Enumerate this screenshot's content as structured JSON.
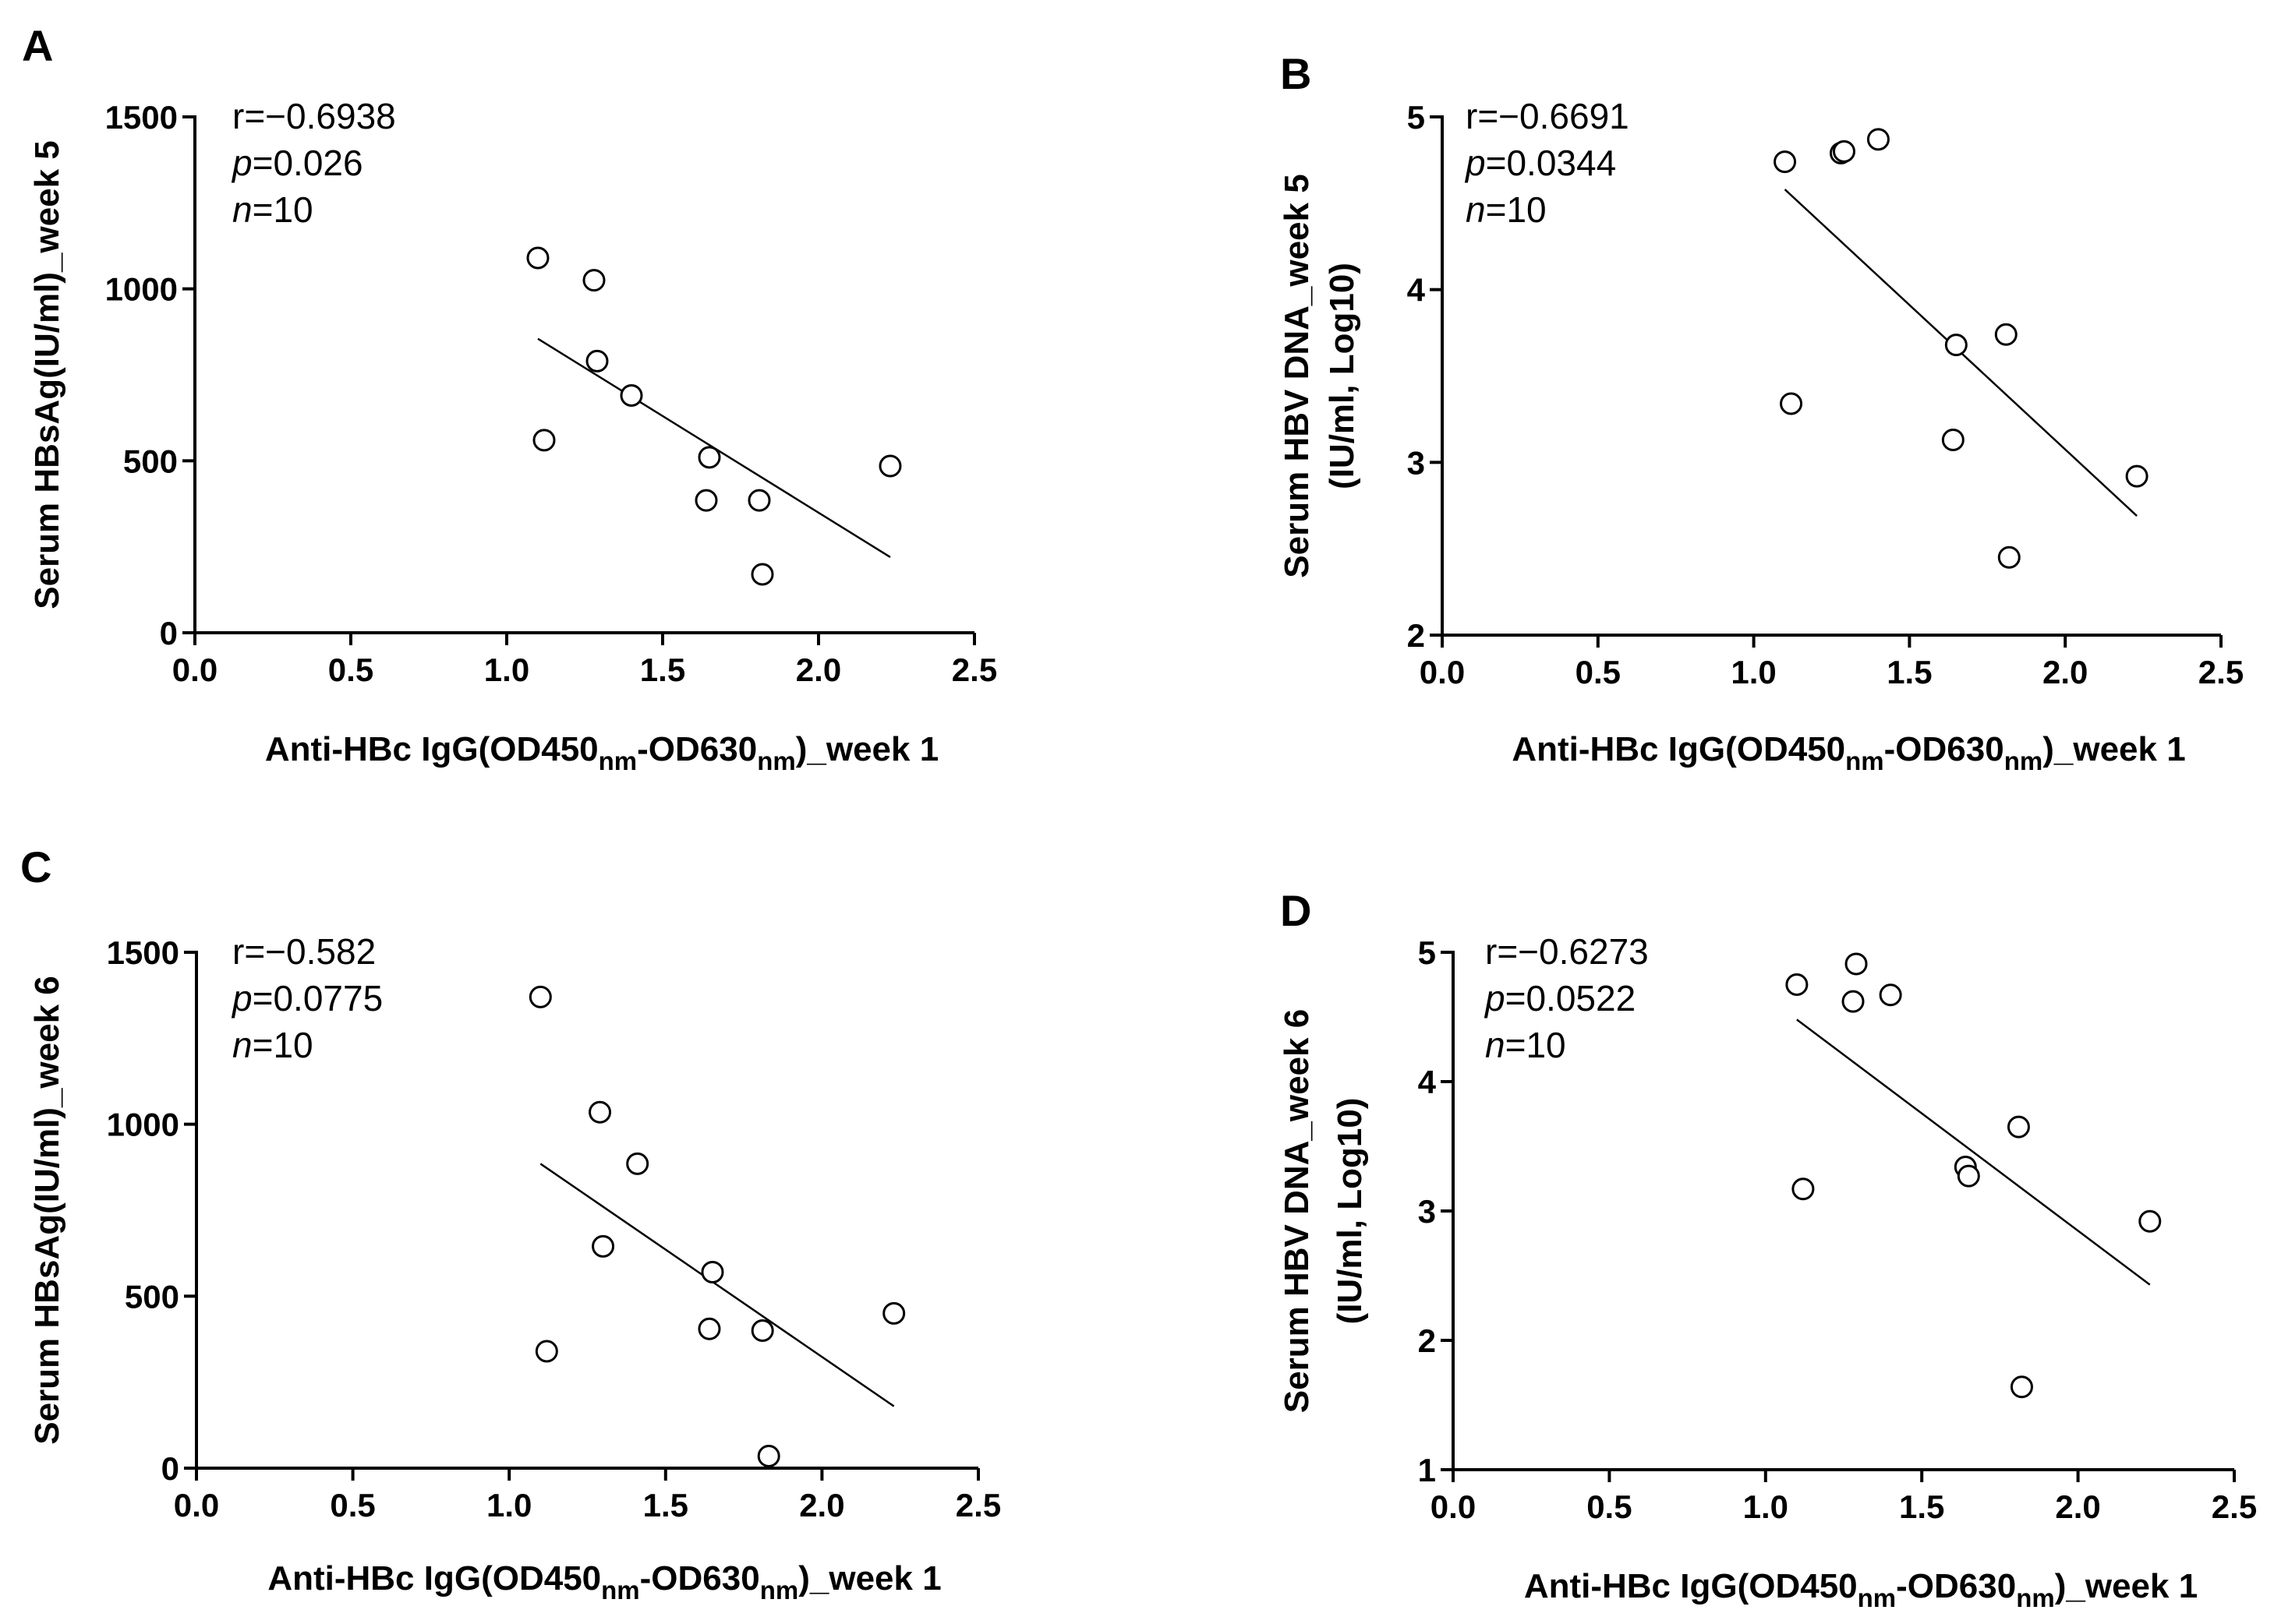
{
  "chart_data": [
    {
      "type": "scatter",
      "panel": "A",
      "xlabel": "Anti-HBc IgG(OD450nm-OD630nm)_week 1",
      "xlabel_parts": {
        "pre": "Anti-HBc IgG(OD450",
        "sub1": "nm",
        "mid": "-OD630",
        "sub2": "nm",
        "post": ")_week 1"
      },
      "ylabel_lines": [
        "Serum HBsAg(IU/ml)_week 5"
      ],
      "xlim": [
        0,
        2.5
      ],
      "ylim": [
        0,
        1500
      ],
      "xticks": [
        "0.0",
        "0.5",
        "1.0",
        "1.5",
        "2.0",
        "2.5"
      ],
      "yticks": [
        "0",
        "500",
        "1000",
        "1500"
      ],
      "stats": {
        "r": "r=−0.6938",
        "p_label": "p",
        "p_value": "=0.026",
        "n_label": "n",
        "n_value": "=10"
      },
      "points": [
        {
          "x": 1.1,
          "y": 1090
        },
        {
          "x": 1.12,
          "y": 560
        },
        {
          "x": 1.28,
          "y": 1025
        },
        {
          "x": 1.29,
          "y": 790
        },
        {
          "x": 1.4,
          "y": 690
        },
        {
          "x": 1.65,
          "y": 510
        },
        {
          "x": 1.64,
          "y": 385
        },
        {
          "x": 1.81,
          "y": 385
        },
        {
          "x": 1.82,
          "y": 170
        },
        {
          "x": 2.23,
          "y": 485
        }
      ],
      "fit": {
        "x1": 1.1,
        "y1": 855,
        "x2": 2.23,
        "y2": 220
      }
    },
    {
      "type": "scatter",
      "panel": "B",
      "xlabel": "Anti-HBc IgG(OD450nm-OD630nm)_week 1",
      "xlabel_parts": {
        "pre": "Anti-HBc IgG(OD450",
        "sub1": "nm",
        "mid": "-OD630",
        "sub2": "nm",
        "post": ")_week 1"
      },
      "ylabel_lines": [
        "Serum HBV DNA_week 5",
        "(IU/ml, Log10)"
      ],
      "xlim": [
        0,
        2.5
      ],
      "ylim": [
        2,
        5
      ],
      "xticks": [
        "0.0",
        "0.5",
        "1.0",
        "1.5",
        "2.0",
        "2.5"
      ],
      "yticks": [
        "2",
        "3",
        "4",
        "5"
      ],
      "stats": {
        "r": "r=−0.6691",
        "p_label": "p",
        "p_value": "=0.0344",
        "n_label": "n",
        "n_value": "=10"
      },
      "points": [
        {
          "x": 1.1,
          "y": 4.74
        },
        {
          "x": 1.12,
          "y": 3.34
        },
        {
          "x": 1.28,
          "y": 4.79
        },
        {
          "x": 1.29,
          "y": 4.8
        },
        {
          "x": 1.4,
          "y": 4.87
        },
        {
          "x": 1.65,
          "y": 3.68
        },
        {
          "x": 1.64,
          "y": 3.13
        },
        {
          "x": 1.81,
          "y": 3.74
        },
        {
          "x": 1.82,
          "y": 2.45
        },
        {
          "x": 2.23,
          "y": 2.92
        }
      ],
      "fit": {
        "x1": 1.1,
        "y1": 4.58,
        "x2": 2.23,
        "y2": 2.69
      }
    },
    {
      "type": "scatter",
      "panel": "C",
      "xlabel": "Anti-HBc IgG(OD450nm-OD630nm)_week 1",
      "xlabel_parts": {
        "pre": "Anti-HBc IgG(OD450",
        "sub1": "nm",
        "mid": "-OD630",
        "sub2": "nm",
        "post": ")_week 1"
      },
      "ylabel_lines": [
        "Serum HBsAg(IU/ml)_week 6"
      ],
      "xlim": [
        0,
        2.5
      ],
      "ylim": [
        0,
        1500
      ],
      "xticks": [
        "0.0",
        "0.5",
        "1.0",
        "1.5",
        "2.0",
        "2.5"
      ],
      "yticks": [
        "0",
        "500",
        "1000",
        "1500"
      ],
      "stats": {
        "r": "r=−0.582",
        "p_label": "p",
        "p_value": "=0.0775",
        "n_label": "n",
        "n_value": "=10"
      },
      "points": [
        {
          "x": 1.1,
          "y": 1370
        },
        {
          "x": 1.12,
          "y": 340
        },
        {
          "x": 1.29,
          "y": 1035
        },
        {
          "x": 1.3,
          "y": 645
        },
        {
          "x": 1.41,
          "y": 885
        },
        {
          "x": 1.65,
          "y": 570
        },
        {
          "x": 1.64,
          "y": 405
        },
        {
          "x": 1.81,
          "y": 400
        },
        {
          "x": 1.83,
          "y": 35
        },
        {
          "x": 2.23,
          "y": 450
        }
      ],
      "fit": {
        "x1": 1.1,
        "y1": 885,
        "x2": 2.23,
        "y2": 180
      }
    },
    {
      "type": "scatter",
      "panel": "D",
      "xlabel": "Anti-HBc IgG(OD450nm-OD630nm)_week 1",
      "xlabel_parts": {
        "pre": "Anti-HBc IgG(OD450",
        "sub1": "nm",
        "mid": "-OD630",
        "sub2": "nm",
        "post": ")_week 1"
      },
      "ylabel_lines": [
        "Serum HBV DNA_week 6",
        "(IU/ml, Log10)"
      ],
      "xlim": [
        0,
        2.5
      ],
      "ylim": [
        1,
        5
      ],
      "xticks": [
        "0.0",
        "0.5",
        "1.0",
        "1.5",
        "2.0",
        "2.5"
      ],
      "yticks": [
        "1",
        "2",
        "3",
        "4",
        "5"
      ],
      "stats": {
        "r": "r=−0.6273",
        "p_label": "p",
        "p_value": "=0.0522",
        "n_label": "n",
        "n_value": "=10"
      },
      "points": [
        {
          "x": 1.1,
          "y": 4.75
        },
        {
          "x": 1.12,
          "y": 3.17
        },
        {
          "x": 1.28,
          "y": 4.62
        },
        {
          "x": 1.29,
          "y": 4.91
        },
        {
          "x": 1.4,
          "y": 4.67
        },
        {
          "x": 1.64,
          "y": 3.34
        },
        {
          "x": 1.65,
          "y": 3.27
        },
        {
          "x": 1.81,
          "y": 3.65
        },
        {
          "x": 1.82,
          "y": 1.64
        },
        {
          "x": 2.23,
          "y": 2.92
        }
      ],
      "fit": {
        "x1": 1.1,
        "y1": 4.48,
        "x2": 2.23,
        "y2": 2.43
      }
    }
  ]
}
